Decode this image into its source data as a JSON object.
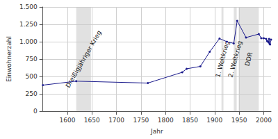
{
  "chart_data": {
    "type": "line",
    "x_label": "Jahr",
    "y_label": "Einwohnerzahl",
    "x": [
      1550,
      1618,
      1764,
      1834,
      1843,
      1871,
      1890,
      1910,
      1925,
      1939,
      1946,
      1964,
      1990,
      1995,
      2000,
      2005,
      2007,
      2009,
      2010,
      2011,
      2012,
      2013,
      2015
    ],
    "values": [
      375,
      432,
      405,
      560,
      610,
      645,
      855,
      1045,
      1000,
      975,
      1300,
      1060,
      1110,
      1050,
      1050,
      1040,
      1010,
      1000,
      990,
      1040,
      970,
      960,
      1030
    ],
    "color": "#1a1a8c",
    "marker": "circle",
    "xlim": [
      1550,
      2015
    ],
    "xticks": [
      1600,
      1650,
      1700,
      1750,
      1800,
      1850,
      1900,
      1950,
      2000
    ],
    "ylim": [
      0,
      1500
    ],
    "yticks": [
      0,
      250,
      500,
      750,
      {
        "value": 1000,
        "label": "1.000"
      },
      {
        "value": 1250,
        "label": "1.250"
      },
      {
        "value": 1500,
        "label": "1.500"
      }
    ],
    "grid": true,
    "annotations": [
      {
        "label": "Dreißigjähriger Krieg",
        "start": 1618,
        "end": 1648
      },
      {
        "label": "1. Weltkrieg",
        "start": 1914,
        "end": 1918
      },
      {
        "label": "2. Weltkrieg",
        "start": 1939,
        "end": 1945
      },
      {
        "label": "DDR",
        "start": 1949,
        "end": 1990
      }
    ]
  }
}
